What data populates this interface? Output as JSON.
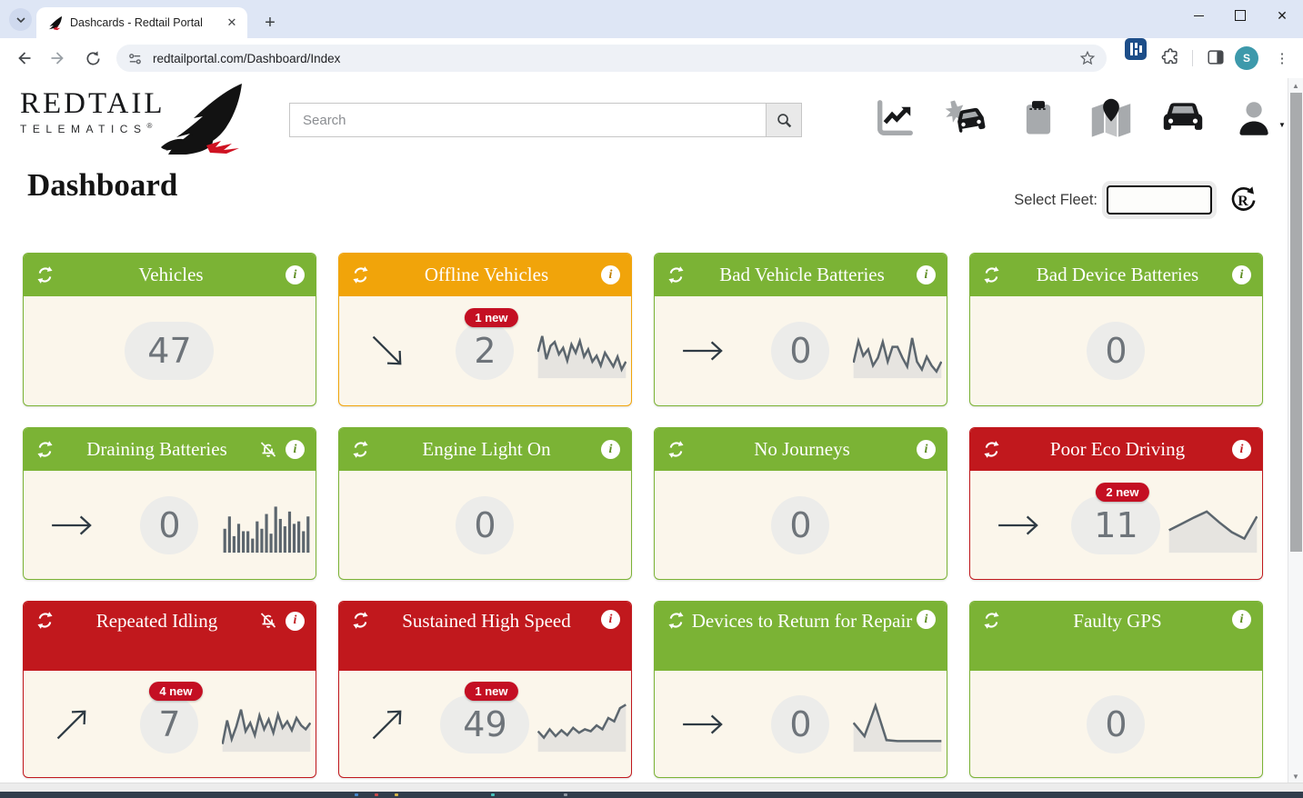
{
  "browser": {
    "tab_title": "Dashcards - Redtail Portal",
    "url": "redtailportal.com/Dashboard/Index",
    "profile_initial": "S"
  },
  "brand": {
    "name": "REDTAIL",
    "subtitle": "TELEMATICS",
    "registered": "®"
  },
  "header": {
    "search_placeholder": "Search",
    "nav_icons": [
      "analytics-icon",
      "car-crash-icon",
      "clipboard-icon",
      "map-pin-icon",
      "vehicle-icon",
      "user-account-icon"
    ]
  },
  "page": {
    "title": "Dashboard",
    "select_fleet_label": "Select Fleet:",
    "fleet_value": "",
    "fleet_refresh_letter": "R"
  },
  "colors": {
    "green": "#7bb335",
    "orange": "#f1a40a",
    "red": "#c1181d",
    "badge_red": "#c40f23",
    "card_body": "#fbf6eb",
    "sparkline": "#5c666e",
    "sparkline_fill": "#e6e4e0"
  },
  "cards": [
    {
      "title": "Vehicles",
      "color": "green",
      "value": "47",
      "trend": null,
      "badge": null,
      "muted": false,
      "spark": null
    },
    {
      "title": "Offline Vehicles",
      "color": "orange",
      "value": "2",
      "trend": "down",
      "badge": "1 new",
      "muted": false,
      "spark": {
        "type": "line",
        "y": [
          50,
          18,
          65,
          38,
          30,
          55,
          42,
          68,
          35,
          52,
          28,
          60,
          45,
          70,
          58,
          78,
          52,
          66,
          80,
          60,
          86,
          70
        ]
      }
    },
    {
      "title": "Bad Vehicle Batteries",
      "color": "green",
      "value": "0",
      "trend": "right",
      "badge": null,
      "muted": false,
      "spark": {
        "type": "line",
        "y": [
          72,
          28,
          58,
          45,
          78,
          62,
          30,
          70,
          40,
          40,
          62,
          80,
          22,
          70,
          86,
          60,
          78,
          90,
          70
        ]
      }
    },
    {
      "title": "Bad Device Batteries",
      "color": "green",
      "value": "0",
      "trend": null,
      "badge": null,
      "muted": false,
      "spark": null
    },
    {
      "title": "Draining Batteries",
      "color": "green",
      "value": "0",
      "trend": "right",
      "badge": null,
      "muted": true,
      "spark": {
        "type": "bar",
        "y": [
          55,
          30,
          70,
          45,
          60,
          60,
          75,
          40,
          55,
          25,
          65,
          10,
          35,
          50,
          20,
          45,
          40,
          60,
          30
        ]
      }
    },
    {
      "title": "Engine Light On",
      "color": "green",
      "value": "0",
      "trend": null,
      "badge": null,
      "muted": false,
      "spark": null
    },
    {
      "title": "No Journeys",
      "color": "green",
      "value": "0",
      "trend": null,
      "badge": null,
      "muted": false,
      "spark": null
    },
    {
      "title": "Poor Eco Driving",
      "color": "red",
      "value": "11",
      "trend": "right",
      "badge": "2 new",
      "muted": false,
      "spark": {
        "type": "line",
        "y": [
          58,
          45,
          32,
          20,
          42,
          62,
          75,
          30
        ]
      }
    },
    {
      "title": "Repeated Idling",
      "color": "red",
      "value": "7",
      "trend": "up",
      "badge": "4 new",
      "muted": true,
      "spark": {
        "type": "line",
        "y": [
          88,
          40,
          78,
          52,
          18,
          62,
          45,
          70,
          30,
          58,
          38,
          65,
          28,
          55,
          42,
          60,
          35,
          50,
          58,
          45
        ]
      }
    },
    {
      "title": "Sustained High Speed",
      "color": "red",
      "value": "49",
      "trend": "up",
      "badge": "1 new",
      "muted": false,
      "spark": {
        "type": "line",
        "y": [
          62,
          75,
          58,
          72,
          60,
          70,
          55,
          65,
          58,
          62,
          50,
          58,
          35,
          42,
          15,
          8
        ]
      }
    },
    {
      "title": "Devices to Return for Repair",
      "color": "green",
      "value": "0",
      "trend": "right",
      "badge": null,
      "muted": false,
      "spark": {
        "type": "line",
        "y": [
          45,
          72,
          10,
          80,
          82,
          82,
          82,
          82,
          82
        ]
      }
    },
    {
      "title": "Faulty GPS",
      "color": "green",
      "value": "0",
      "trend": null,
      "badge": null,
      "muted": false,
      "spark": null
    }
  ]
}
